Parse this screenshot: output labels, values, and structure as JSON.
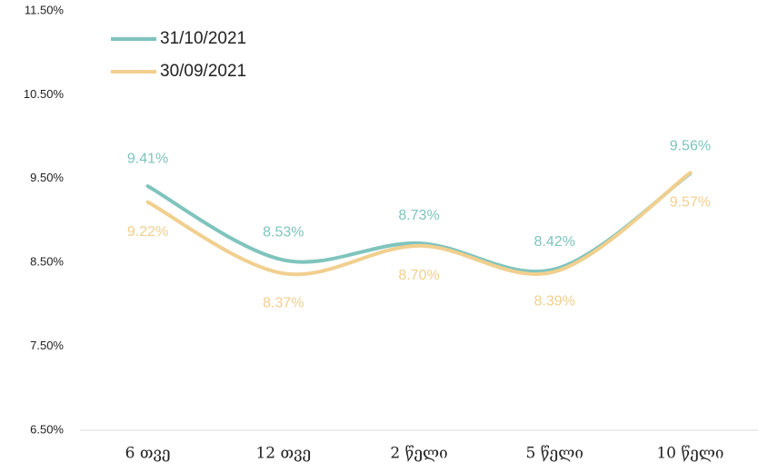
{
  "chart_data": {
    "type": "line",
    "categories": [
      "6 თვე",
      "12 თვე",
      "2 წელი",
      "5 წელი",
      "10 წელი"
    ],
    "series": [
      {
        "name": "31/10/2021",
        "color": "#7fc4bd",
        "values": [
          9.41,
          8.53,
          8.73,
          8.42,
          9.56
        ],
        "value_labels": [
          "9.41%",
          "8.53%",
          "8.73%",
          "8.42%",
          "9.56%"
        ]
      },
      {
        "name": "30/09/2021",
        "color": "#f1cf8e",
        "values": [
          9.22,
          8.37,
          8.7,
          8.39,
          9.57
        ],
        "value_labels": [
          "9.22%",
          "8.37%",
          "8.70%",
          "8.39%",
          "9.57%"
        ]
      }
    ],
    "ylim": [
      6.5,
      11.5
    ],
    "yticks": [
      {
        "value": 6.5,
        "label": "6.50%"
      },
      {
        "value": 7.5,
        "label": "7.50%"
      },
      {
        "value": 8.5,
        "label": "8.50%"
      },
      {
        "value": 9.5,
        "label": "9.50%"
      },
      {
        "value": 10.5,
        "label": "10.50%"
      },
      {
        "value": 11.5,
        "label": "11.50%"
      }
    ],
    "grid": false,
    "legend": "top-left"
  }
}
